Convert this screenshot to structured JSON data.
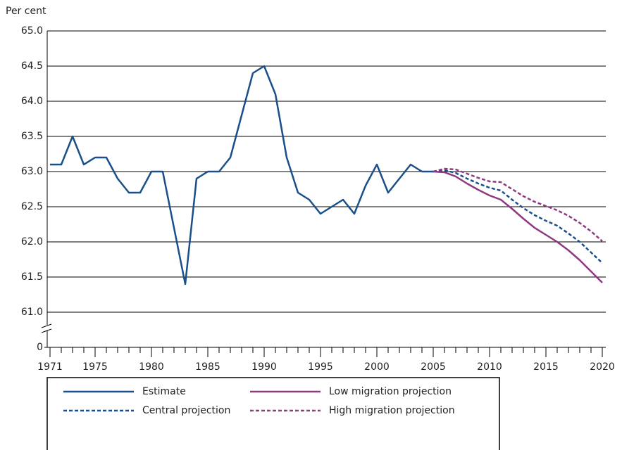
{
  "chart_data": {
    "type": "line",
    "y_axis_label": "Per cent",
    "x": [
      1971,
      1972,
      1973,
      1974,
      1975,
      1976,
      1977,
      1978,
      1979,
      1980,
      1981,
      1982,
      1983,
      1984,
      1985,
      1986,
      1987,
      1988,
      1989,
      1990,
      1991,
      1992,
      1993,
      1994,
      1995,
      1996,
      1997,
      1998,
      1999,
      2000,
      2001,
      2002,
      2003,
      2004,
      2005,
      2006,
      2007,
      2008,
      2009,
      2010,
      2011,
      2012,
      2013,
      2014,
      2015,
      2016,
      2017,
      2018,
      2019,
      2020
    ],
    "series": [
      {
        "name": "Estimate",
        "color": "#1b4f8a",
        "dash": false,
        "values": [
          63.1,
          63.1,
          63.5,
          63.1,
          63.2,
          63.2,
          62.9,
          62.7,
          62.7,
          63.0,
          63.0,
          62.2,
          61.4,
          62.9,
          63.0,
          63.0,
          63.2,
          63.8,
          64.4,
          64.5,
          64.1,
          63.2,
          62.7,
          62.6,
          62.4,
          62.5,
          62.6,
          62.4,
          62.8,
          63.1,
          62.7,
          62.9,
          63.1,
          63.0,
          63.0,
          null,
          null,
          null,
          null,
          null,
          null,
          null,
          null,
          null,
          null,
          null,
          null,
          null,
          null,
          null
        ]
      },
      {
        "name": "Low migration projection",
        "color": "#8e3a80",
        "dash": false,
        "values": [
          null,
          null,
          null,
          null,
          null,
          null,
          null,
          null,
          null,
          null,
          null,
          null,
          null,
          null,
          null,
          null,
          null,
          null,
          null,
          null,
          null,
          null,
          null,
          null,
          null,
          null,
          null,
          null,
          null,
          null,
          null,
          null,
          null,
          null,
          63.0,
          62.99,
          62.93,
          62.83,
          62.74,
          62.66,
          62.6,
          62.47,
          62.33,
          62.2,
          62.1,
          62.0,
          61.88,
          61.74,
          61.58,
          61.42
        ]
      },
      {
        "name": "Central projection",
        "color": "#1b4f8a",
        "dash": true,
        "values": [
          null,
          null,
          null,
          null,
          null,
          null,
          null,
          null,
          null,
          null,
          null,
          null,
          null,
          null,
          null,
          null,
          null,
          null,
          null,
          null,
          null,
          null,
          null,
          null,
          null,
          null,
          null,
          null,
          null,
          null,
          null,
          null,
          null,
          null,
          63.0,
          63.02,
          62.98,
          62.9,
          62.83,
          62.77,
          62.73,
          62.6,
          62.48,
          62.38,
          62.3,
          62.23,
          62.12,
          62.0,
          61.85,
          61.7
        ]
      },
      {
        "name": "High migration projection",
        "color": "#8e3a80",
        "dash": true,
        "values": [
          null,
          null,
          null,
          null,
          null,
          null,
          null,
          null,
          null,
          null,
          null,
          null,
          null,
          null,
          null,
          null,
          null,
          null,
          null,
          null,
          null,
          null,
          null,
          null,
          null,
          null,
          null,
          null,
          null,
          null,
          null,
          null,
          null,
          null,
          63.0,
          63.04,
          63.03,
          62.97,
          62.91,
          62.86,
          62.85,
          62.75,
          62.65,
          62.57,
          62.51,
          62.45,
          62.37,
          62.27,
          62.15,
          62.01
        ]
      }
    ],
    "xlim": [
      1971,
      2020
    ],
    "xticks": [
      1971,
      1975,
      1980,
      1985,
      1990,
      1995,
      2000,
      2005,
      2010,
      2015,
      2020
    ],
    "ylim": [
      0,
      65
    ],
    "yticks": [
      0,
      {
        "value": 61,
        "label": "61.0"
      },
      {
        "value": 61.5,
        "label": "61.5"
      },
      {
        "value": 62,
        "label": "62.0"
      },
      {
        "value": 62.5,
        "label": "62.5"
      },
      {
        "value": 63,
        "label": "63.0"
      },
      {
        "value": 63.5,
        "label": "63.5"
      },
      {
        "value": 64,
        "label": "64.0"
      },
      {
        "value": 64.5,
        "label": "64.5"
      },
      {
        "value": 65,
        "label": "65.0"
      }
    ],
    "grid": true
  }
}
